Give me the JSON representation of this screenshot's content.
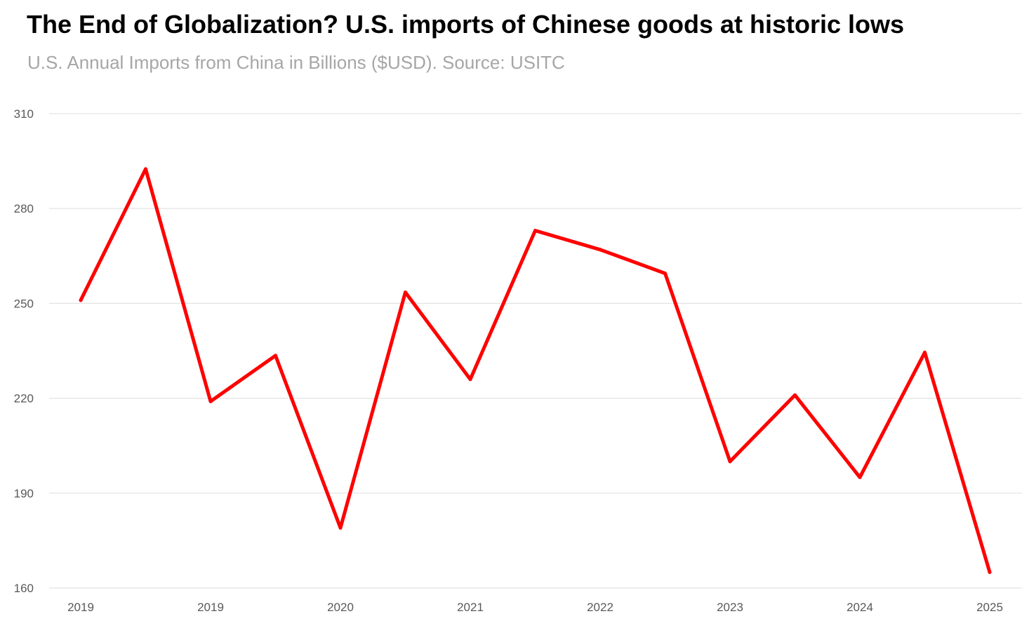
{
  "chart_data": {
    "type": "line",
    "title": "The End of Globalization? U.S. imports of Chinese goods at historic lows",
    "subtitle": "U.S. Annual Imports from China in Billions ($USD). Source: USITC",
    "xlabel": "",
    "ylabel": "",
    "ylim": [
      160,
      310
    ],
    "yticks": [
      160,
      190,
      220,
      250,
      280,
      310
    ],
    "x_tick_labels": [
      "2019",
      "2019",
      "2020",
      "2021",
      "2022",
      "2023",
      "2024",
      "2025"
    ],
    "grid": true,
    "legend": "none",
    "series": [
      {
        "name": "U.S. Annual Imports from China",
        "color": "#ff0000",
        "values": [
          251,
          292.5,
          219,
          233.5,
          179,
          253.5,
          226,
          273,
          267,
          259.5,
          200,
          221,
          195,
          234.5,
          165
        ]
      }
    ]
  }
}
